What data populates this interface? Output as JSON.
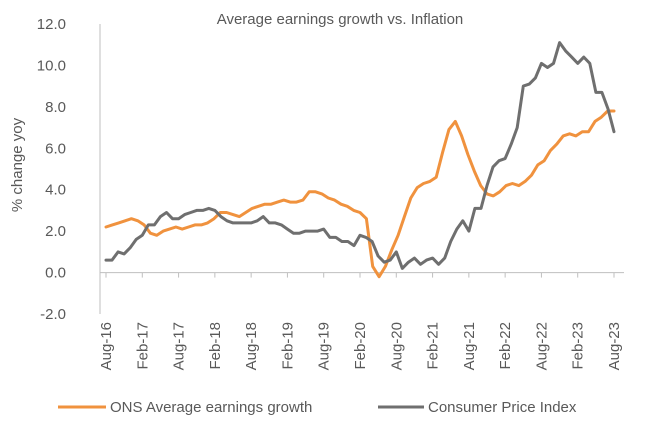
{
  "chart_data": {
    "type": "line",
    "title": "Average earnings growth vs. Inflation",
    "ylabel": "% change yoy",
    "xlabel": "",
    "ylim": [
      -2,
      12
    ],
    "yticks": [
      "-2.0",
      "0.0",
      "2.0",
      "4.0",
      "6.0",
      "8.0",
      "10.0",
      "12.0"
    ],
    "ytick_values": [
      -2,
      0,
      2,
      4,
      6,
      8,
      10,
      12
    ],
    "x_start": "Aug-16",
    "x_end": "Aug-23",
    "xticks": [
      "Aug-16",
      "Feb-17",
      "Aug-17",
      "Feb-18",
      "Aug-18",
      "Feb-19",
      "Aug-19",
      "Feb-20",
      "Aug-20",
      "Feb-21",
      "Aug-21",
      "Feb-22",
      "Aug-22",
      "Feb-23",
      "Aug-23"
    ],
    "grid": false,
    "legend_position": "bottom",
    "series": [
      {
        "name": "ONS Average earnings growth",
        "color": "#f0923e",
        "values": [
          2.2,
          2.3,
          2.4,
          2.5,
          2.6,
          2.5,
          2.3,
          1.9,
          1.8,
          2.0,
          2.1,
          2.2,
          2.1,
          2.2,
          2.3,
          2.3,
          2.4,
          2.6,
          2.9,
          2.9,
          2.8,
          2.7,
          2.9,
          3.1,
          3.2,
          3.3,
          3.3,
          3.4,
          3.5,
          3.4,
          3.4,
          3.5,
          3.9,
          3.9,
          3.8,
          3.6,
          3.5,
          3.3,
          3.2,
          3.0,
          2.9,
          2.6,
          0.3,
          -0.2,
          0.3,
          1.1,
          1.8,
          2.7,
          3.6,
          4.1,
          4.3,
          4.4,
          4.6,
          5.8,
          6.9,
          7.3,
          6.6,
          5.7,
          4.9,
          4.2,
          3.8,
          3.7,
          3.9,
          4.2,
          4.3,
          4.2,
          4.4,
          4.7,
          5.2,
          5.4,
          5.9,
          6.2,
          6.6,
          6.7,
          6.6,
          6.8,
          6.8,
          7.3,
          7.5,
          7.8,
          7.8
        ]
      },
      {
        "name": "Consumer Price Index",
        "color": "#6f6f6f",
        "values": [
          0.6,
          0.6,
          1.0,
          0.9,
          1.2,
          1.6,
          1.8,
          2.3,
          2.3,
          2.7,
          2.9,
          2.6,
          2.6,
          2.8,
          2.9,
          3.0,
          3.0,
          3.1,
          3.0,
          2.7,
          2.5,
          2.4,
          2.4,
          2.4,
          2.4,
          2.5,
          2.7,
          2.4,
          2.4,
          2.3,
          2.1,
          1.9,
          1.9,
          2.0,
          2.0,
          2.0,
          2.1,
          1.7,
          1.7,
          1.5,
          1.5,
          1.3,
          1.8,
          1.7,
          1.5,
          0.8,
          0.5,
          0.6,
          1.0,
          0.2,
          0.5,
          0.7,
          0.4,
          0.6,
          0.7,
          0.4,
          0.7,
          1.5,
          2.1,
          2.5,
          2.0,
          3.1,
          3.1,
          4.2,
          5.1,
          5.4,
          5.5,
          6.2,
          7.0,
          9.0,
          9.1,
          9.4,
          10.1,
          9.9,
          10.1,
          11.1,
          10.7,
          10.4,
          10.1,
          10.4,
          10.1,
          8.7,
          8.7,
          7.9,
          6.8
        ]
      }
    ]
  }
}
